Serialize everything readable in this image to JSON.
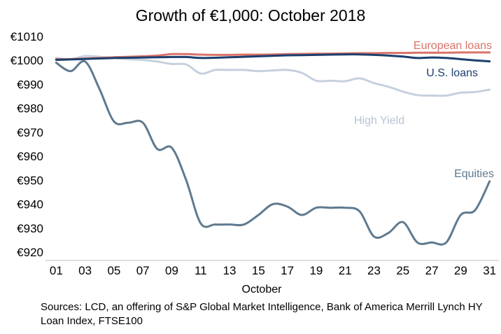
{
  "chart_data": {
    "type": "line",
    "title": "Growth of €1,000: October 2018",
    "xlabel": "October",
    "ylabel": "",
    "xlim": [
      0.5,
      31.5
    ],
    "ylim": [
      920,
      1010
    ],
    "x_ticks": [
      "01",
      "03",
      "05",
      "07",
      "09",
      "11",
      "13",
      "15",
      "17",
      "19",
      "21",
      "23",
      "25",
      "27",
      "29",
      "31"
    ],
    "y_ticks": [
      "€920",
      "€930",
      "€940",
      "€950",
      "€960",
      "€970",
      "€980",
      "€990",
      "€1000",
      "€1010"
    ],
    "grid": false,
    "legend": "inline labels at series ends",
    "x": [
      1,
      2,
      3,
      4,
      5,
      6,
      7,
      8,
      9,
      10,
      11,
      12,
      13,
      14,
      15,
      16,
      17,
      18,
      19,
      20,
      21,
      22,
      23,
      24,
      25,
      26,
      27,
      28,
      29,
      30,
      31
    ],
    "series": [
      {
        "name": "European loans",
        "color": "#d9736a",
        "values": [
          1000.5,
          1000.5,
          1000.8,
          1001.0,
          1001.3,
          1001.5,
          1001.7,
          1002.0,
          1002.6,
          1002.6,
          1002.4,
          1002.3,
          1002.3,
          1002.4,
          1002.4,
          1002.5,
          1002.6,
          1002.7,
          1002.8,
          1002.8,
          1002.9,
          1003.0,
          1003.0,
          1003.1,
          1003.1,
          1003.2,
          1003.2,
          1003.2,
          1003.3,
          1003.3,
          1003.3
        ]
      },
      {
        "name": "U.S. loans",
        "color": "#1c3f6e",
        "values": [
          1000.2,
          1000.4,
          1000.6,
          1000.8,
          1001.0,
          1001.1,
          1001.2,
          1001.3,
          1001.4,
          1001.4,
          1001.0,
          1001.1,
          1001.3,
          1001.5,
          1001.7,
          1001.9,
          1002.1,
          1002.2,
          1002.3,
          1002.4,
          1002.5,
          1002.5,
          1002.3,
          1002.0,
          1001.6,
          1001.0,
          1001.2,
          1001.0,
          1000.5,
          1000.0,
          999.6
        ]
      },
      {
        "name": "High Yield",
        "color": "#c6d0de",
        "values": [
          1001.0,
          1000.5,
          1001.8,
          1001.5,
          1001.0,
          1000.5,
          1000.2,
          999.5,
          998.5,
          998.3,
          994.5,
          996.0,
          996.0,
          996.0,
          995.5,
          995.8,
          996.0,
          994.8,
          991.5,
          991.5,
          991.3,
          992.5,
          990.5,
          989.0,
          987.0,
          985.5,
          985.3,
          985.3,
          986.5,
          986.8,
          987.8
        ]
      },
      {
        "name": "Equities",
        "color": "#5f7a8f",
        "values": [
          999.0,
          995.5,
          999.5,
          988.0,
          974.5,
          974.0,
          974.0,
          963.0,
          963.5,
          950.0,
          932.0,
          931.5,
          931.5,
          931.5,
          935.5,
          940.0,
          939.0,
          935.5,
          938.5,
          938.5,
          938.5,
          937.0,
          926.5,
          928.0,
          932.5,
          924.0,
          924.0,
          924.0,
          935.5,
          937.5,
          949.5
        ]
      }
    ]
  },
  "source_text": "Sources: LCD, an offering of S&P Global Market Intelligence, Bank of America Merrill Lynch HY Loan Index, FTSE100"
}
